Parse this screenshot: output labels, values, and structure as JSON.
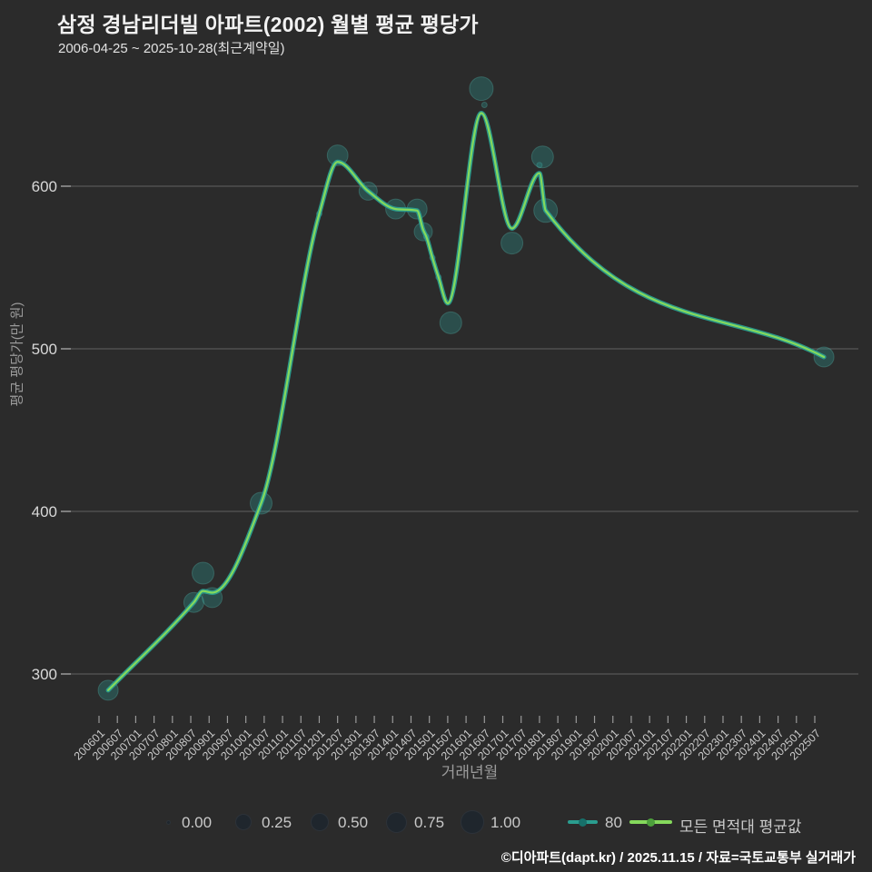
{
  "header": {
    "title": "삼정 경남리더빌 아파트(2002) 월별 평균 평당가",
    "subtitle": "2006-04-25 ~ 2025-10-28(최근계약일)"
  },
  "footer": {
    "text": "©디아파트(dapt.kr) / 2025.11.15 / 자료=국토교통부 실거래가"
  },
  "axes": {
    "x_title": "거래년월",
    "y_title": "평균 평당가(만 원)",
    "x_ticks": [
      "200601",
      "200607",
      "200701",
      "200707",
      "200801",
      "200807",
      "200901",
      "200907",
      "201001",
      "201007",
      "201101",
      "201107",
      "201201",
      "201207",
      "201301",
      "201307",
      "201401",
      "201407",
      "201501",
      "201507",
      "201601",
      "201607",
      "201701",
      "201707",
      "201801",
      "201807",
      "201901",
      "201907",
      "202001",
      "202007",
      "202101",
      "202107",
      "202201",
      "202207",
      "202301",
      "202307",
      "202401",
      "202407",
      "202501",
      "202507"
    ],
    "y_ticks": [
      300,
      400,
      500,
      600
    ]
  },
  "legend": {
    "size_scale_labels": [
      "0.00",
      "0.25",
      "0.50",
      "0.75",
      "1.00"
    ],
    "series": [
      {
        "label": "80",
        "color": "#2a9d8f",
        "marker_color": "#17706a"
      },
      {
        "label": "모든 면적대 평균값",
        "color": "#85d95c",
        "marker_color": "#4da03c"
      }
    ]
  },
  "colors": {
    "background": "#2b2b2b",
    "grid": "#6b6b6b",
    "tick": "#9a9a9a",
    "x_tick_label": "#c9c9c9",
    "y_tick_label": "#d8d8d8",
    "axis_title": "#9b9b9b",
    "teal_line": "#2a9d8f",
    "green_line": "#85d95c",
    "bubble_fill": "rgba(44,160,152,0.30)",
    "bubble_stroke": "rgba(93,200,190,0.28)"
  },
  "chart_data": {
    "type": "line+scatter",
    "title": "삼정 경남리더빌 아파트(2002) 월별 평균 평당가",
    "xlabel": "거래년월",
    "ylabel": "평균 평당가(만 원)",
    "x_range": [
      "200601",
      "202507"
    ],
    "ylim": [
      275,
      670
    ],
    "grid": "horizontal",
    "legend_position": "bottom",
    "series": [
      {
        "name": "80",
        "color": "#2a9d8f",
        "width": 5,
        "points": [
          [
            "200604",
            290
          ],
          [
            "200808",
            344
          ],
          [
            "200811",
            351
          ],
          [
            "200902",
            350
          ],
          [
            "201006",
            405
          ],
          [
            "201201",
            583
          ],
          [
            "201207",
            615
          ],
          [
            "201305",
            597
          ],
          [
            "201402",
            586
          ],
          [
            "201409",
            585
          ],
          [
            "201411",
            573
          ],
          [
            "201412",
            569
          ],
          [
            "201502",
            556
          ],
          [
            "201504",
            544
          ],
          [
            "201507",
            528
          ],
          [
            "201606",
            645
          ],
          [
            "201704",
            574
          ],
          [
            "201801",
            608
          ],
          [
            "201803",
            585
          ],
          [
            "202510",
            495
          ]
        ]
      },
      {
        "name": "모든 면적대 평균값",
        "color": "#85d95c",
        "width": 2.2,
        "points": [
          [
            "200604",
            290
          ],
          [
            "200808",
            344
          ],
          [
            "200811",
            351
          ],
          [
            "200902",
            350
          ],
          [
            "201006",
            405
          ],
          [
            "201201",
            583
          ],
          [
            "201207",
            615
          ],
          [
            "201305",
            597
          ],
          [
            "201402",
            586
          ],
          [
            "201409",
            585
          ],
          [
            "201411",
            573
          ],
          [
            "201412",
            569
          ],
          [
            "201502",
            556
          ],
          [
            "201504",
            544
          ],
          [
            "201507",
            528
          ],
          [
            "201606",
            645
          ],
          [
            "201704",
            574
          ],
          [
            "201801",
            608
          ],
          [
            "201803",
            585
          ],
          [
            "202510",
            495
          ]
        ]
      }
    ],
    "scatter_series": {
      "name": "80",
      "size_scale": [
        0.0,
        1.0
      ],
      "points": [
        [
          "200604",
          290,
          0.81
        ],
        [
          "200808",
          344,
          0.81
        ],
        [
          "200811",
          362,
          0.9
        ],
        [
          "200902",
          347,
          0.81
        ],
        [
          "201006",
          405,
          0.9
        ],
        [
          "201201",
          583,
          0.05
        ],
        [
          "201207",
          619,
          0.85
        ],
        [
          "201305",
          597,
          0.71
        ],
        [
          "201402",
          586,
          0.81
        ],
        [
          "201409",
          586,
          0.81
        ],
        [
          "201411",
          572,
          0.71
        ],
        [
          "201412",
          569,
          0.05
        ],
        [
          "201502",
          556,
          0.05
        ],
        [
          "201504",
          544,
          0.05
        ],
        [
          "201508",
          516,
          0.9
        ],
        [
          "201606",
          660,
          1.0
        ],
        [
          "201607",
          650,
          0.05
        ],
        [
          "201704",
          565,
          0.9
        ],
        [
          "201801",
          613,
          0.05
        ],
        [
          "201802",
          618,
          0.9
        ],
        [
          "201803",
          585,
          1.0
        ],
        [
          "202510",
          495,
          0.81
        ]
      ]
    }
  }
}
